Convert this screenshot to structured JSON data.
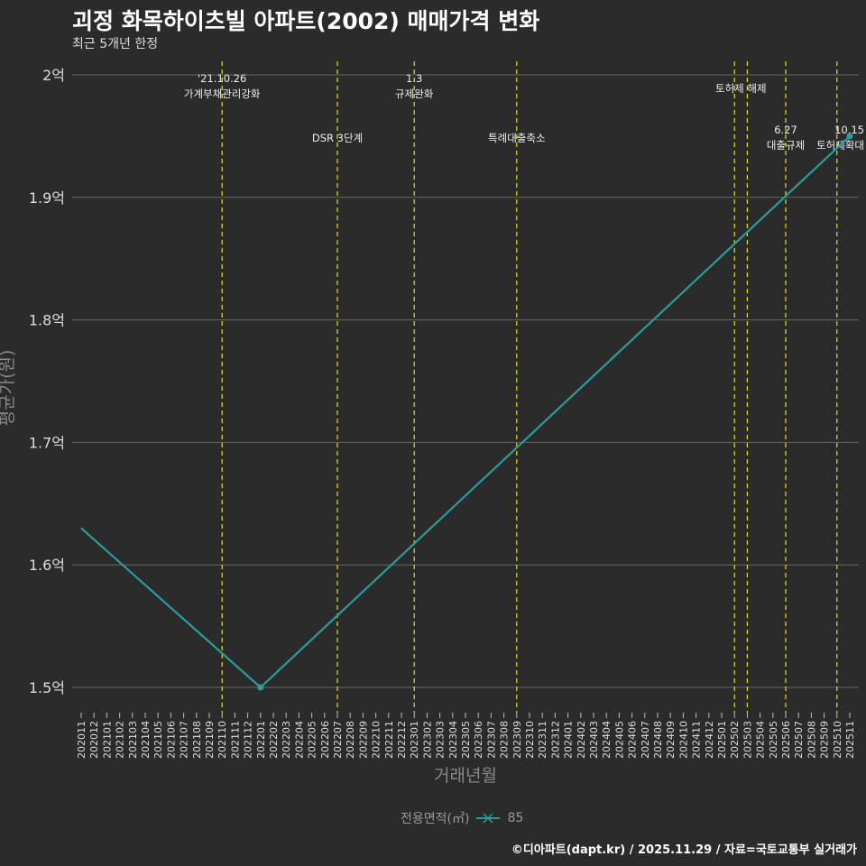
{
  "title": "괴정 화목하이츠빌 아파트(2002) 매매가격 변화",
  "subtitle": "최근 5개년 한정",
  "footer": "©디아파트(dapt.kr) / 2025.11.29 / 자료=국토교통부 실거래가",
  "legend": {
    "title": "전용면적(㎡)",
    "item": "85",
    "color": "#2a9d9a"
  },
  "chart_data": {
    "type": "line",
    "xlabel": "거래년월",
    "ylabel": "평균가(원)",
    "ylim": [
      1.48,
      2.02
    ],
    "yticks": [
      {
        "v": 1.5,
        "label": "1.5억"
      },
      {
        "v": 1.6,
        "label": "1.6억"
      },
      {
        "v": 1.7,
        "label": "1.7억"
      },
      {
        "v": 1.8,
        "label": "1.8억"
      },
      {
        "v": 1.9,
        "label": "1.9억"
      },
      {
        "v": 2.0,
        "label": "2억"
      }
    ],
    "categories": [
      "202011",
      "202012",
      "202101",
      "202102",
      "202103",
      "202104",
      "202105",
      "202106",
      "202107",
      "202108",
      "202109",
      "202110",
      "202111",
      "202112",
      "202201",
      "202202",
      "202203",
      "202204",
      "202205",
      "202206",
      "202207",
      "202208",
      "202209",
      "202210",
      "202211",
      "202212",
      "202301",
      "202302",
      "202303",
      "202304",
      "202305",
      "202306",
      "202307",
      "202308",
      "202309",
      "202310",
      "202311",
      "202312",
      "202401",
      "202402",
      "202403",
      "202404",
      "202405",
      "202406",
      "202407",
      "202408",
      "202409",
      "202410",
      "202411",
      "202412",
      "202501",
      "202502",
      "202503",
      "202504",
      "202505",
      "202506",
      "202507",
      "202508",
      "202509",
      "202510",
      "202511"
    ],
    "series": [
      {
        "name": "85",
        "points": [
          {
            "x": "202011",
            "y": 1.63
          },
          {
            "x": "202201",
            "y": 1.5,
            "marker": true
          },
          {
            "x": "202511",
            "y": 1.95,
            "marker": true
          }
        ]
      }
    ],
    "events": [
      {
        "x": "202110",
        "lines": [
          "'21.10.26",
          "가계부채관리강화"
        ],
        "level": "top"
      },
      {
        "x": "202207",
        "lines": [
          "DSR 3단계"
        ],
        "level": "low"
      },
      {
        "x": "202301",
        "lines": [
          "1.3",
          "규제완화"
        ],
        "level": "top"
      },
      {
        "x": "202309",
        "lines": [
          "특례대출축소"
        ],
        "level": "low"
      },
      {
        "x": "202502",
        "lines": [],
        "level": "top"
      },
      {
        "x": "202503",
        "lines": [
          "토허제 해제"
        ],
        "level": "mid",
        "offset": -0.5
      },
      {
        "x": "202506",
        "lines": [
          "6.27",
          "대출규제"
        ],
        "level": "low2"
      },
      {
        "x": "202510",
        "lines": [
          "10.15",
          "토허제확대"
        ],
        "level": "low2"
      }
    ]
  }
}
